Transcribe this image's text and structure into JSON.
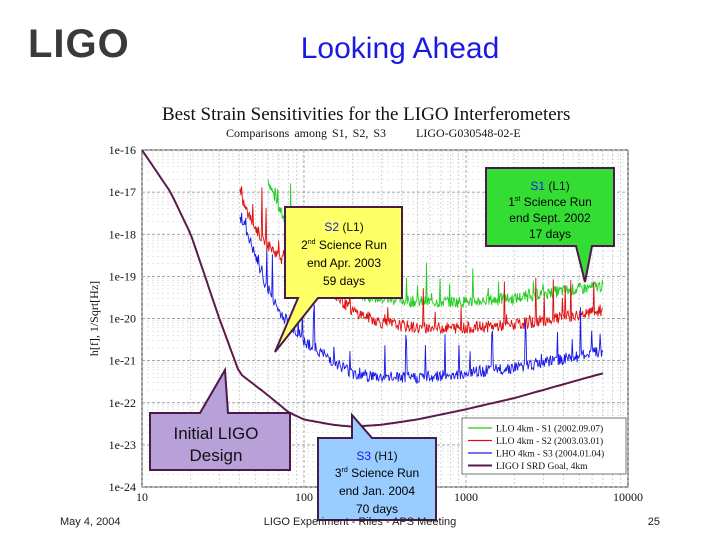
{
  "header": {
    "logo": "LIGO",
    "title": "Looking Ahead"
  },
  "chart_data": {
    "type": "line",
    "title": "Best Strain Sensitivities for the LIGO Interferometers",
    "subtitle": "Comparisons among S1, S2, S3",
    "doc_id": "LIGO-G030548-02-E",
    "xlabel": "",
    "ylabel": "h[f], 1/Sqrt[Hz]",
    "xscale": "log",
    "yscale": "log",
    "xlim": [
      10,
      10000
    ],
    "ylim": [
      1e-24,
      1e-16
    ],
    "x_ticks": [
      "10",
      "100",
      "1000",
      "10000"
    ],
    "y_ticks": [
      "1e-16",
      "1e-17",
      "1e-18",
      "1e-19",
      "1e-20",
      "1e-21",
      "1e-22",
      "1e-23",
      "1e-24"
    ],
    "grid": true,
    "legend_position": "bottom-right",
    "series": [
      {
        "name": "LLO 4km - S1 (2002.09.07)",
        "color": "#22cc22",
        "x": [
          60,
          70,
          85,
          100,
          150,
          200,
          300,
          500,
          1000,
          2000,
          3000,
          5000,
          7000
        ],
        "y": [
          2e-17,
          4e-18,
          1e-18,
          3e-19,
          7e-20,
          4e-20,
          3e-20,
          2.5e-20,
          2.5e-20,
          3e-20,
          4e-20,
          5e-20,
          6e-20
        ]
      },
      {
        "name": "LLO 4km - S2 (2003.03.01)",
        "color": "#e01010",
        "x": [
          40,
          45,
          55,
          70,
          100,
          150,
          200,
          300,
          500,
          1000,
          2000,
          3000,
          5000,
          7000
        ],
        "y": [
          1e-17,
          3e-18,
          8e-19,
          3e-19,
          1e-19,
          4e-20,
          1.5e-20,
          8e-21,
          6e-21,
          6e-21,
          7e-21,
          9e-21,
          1.2e-20,
          1.5e-20
        ]
      },
      {
        "name": "LHO 4km - S3 (2004.01.04)",
        "color": "#1a1ae8",
        "x": [
          40,
          45,
          55,
          70,
          100,
          150,
          200,
          300,
          500,
          1000,
          2000,
          3000,
          5000,
          7000
        ],
        "y": [
          3e-18,
          1e-18,
          1e-19,
          1.5e-20,
          3e-21,
          1e-21,
          5e-22,
          4e-22,
          4e-22,
          5e-22,
          7e-22,
          9e-22,
          1.3e-21,
          1.7e-21
        ]
      },
      {
        "name": "LIGO I SRD Goal, 4km",
        "color": "#5a1a4a",
        "x": [
          10,
          15,
          20,
          30,
          40,
          60,
          80,
          100,
          150,
          200,
          300,
          500,
          1000,
          2000,
          5000,
          7000
        ],
        "y": [
          1e-16,
          1e-17,
          1e-18,
          1e-20,
          5e-22,
          1.5e-22,
          6e-23,
          4e-23,
          3e-23,
          2.7e-23,
          3e-23,
          4e-23,
          7e-23,
          1.3e-22,
          3.5e-22,
          5e-22
        ]
      }
    ],
    "legend": [
      "LLO 4km - S1 (2002.09.07)",
      "LLO 4km - S2 (2003.03.01)",
      "LHO 4km - S3 (2004.01.04)",
      "LIGO I SRD Goal, 4km"
    ],
    "annotations": {
      "s2": {
        "name": "S2",
        "ifo": "(L1)",
        "ordinal": "2",
        "ordinal_suffix": "nd",
        "line1": "Science Run",
        "line2": "end Apr. 2003",
        "line3": "59 days"
      },
      "s1": {
        "name": "S1",
        "ifo": "(L1)",
        "ordinal": "1",
        "ordinal_suffix": "st",
        "line1": "Science Run",
        "line2": "end Sept. 2002",
        "line3": "17 days"
      },
      "s3": {
        "name": "S3",
        "ifo": "(H1)",
        "ordinal": "3",
        "ordinal_suffix": "rd",
        "line1": "Science Run",
        "line2": "end Jan. 2004",
        "line3": "70 days"
      },
      "design": {
        "line1": "Initial LIGO",
        "line2": "Design"
      }
    }
  },
  "footer": {
    "date": "May 4, 2004",
    "center": "LIGO Experiment - Riles - APS Meeting",
    "page": "25"
  },
  "colors": {
    "title_blue": "#1a1ae0",
    "callout_yellow": "#ffff66",
    "callout_border": "#4a1a4a"
  }
}
